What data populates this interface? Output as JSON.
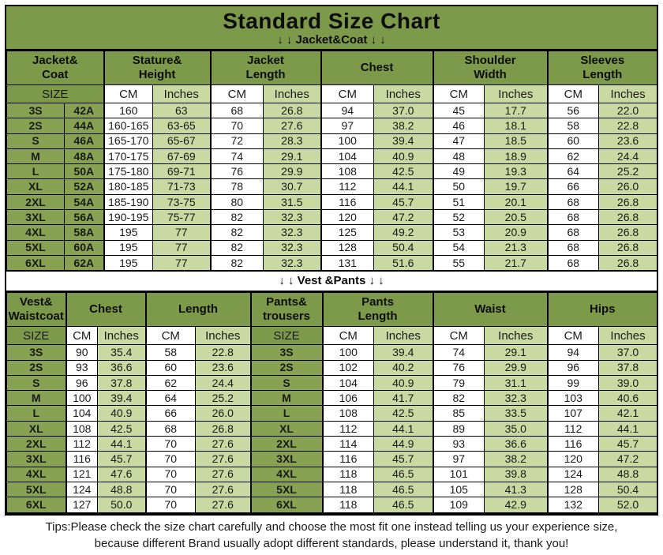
{
  "title": "Standard Size Chart",
  "jacket_section_label": "↓ ↓  Jacket&Coat ↓ ↓",
  "vest_section_label": "↓ ↓  Vest &Pants ↓ ↓",
  "colors": {
    "header_green": "#7d9a4a",
    "size_cell_green": "#86a252",
    "light_green": "#c8d9a1",
    "border": "#000000"
  },
  "jacket_table": {
    "groups": [
      "Jacket&\nCoat",
      "Stature&\nHeight",
      "Jacket\nLength",
      "Chest",
      "Shoulder\nWidth",
      "Sleeves\nLength"
    ],
    "units": [
      "SIZE",
      "CM",
      "Inches",
      "CM",
      "Inches",
      "CM",
      "Inches",
      "CM",
      "Inches",
      "CM",
      "Inches"
    ],
    "rows": [
      [
        "3S",
        "42A",
        "160",
        "63",
        "68",
        "26.8",
        "94",
        "37.0",
        "45",
        "17.7",
        "56",
        "22.0"
      ],
      [
        "2S",
        "44A",
        "160-165",
        "63-65",
        "70",
        "27.6",
        "97",
        "38.2",
        "46",
        "18.1",
        "58",
        "22.8"
      ],
      [
        "S",
        "46A",
        "165-170",
        "65-67",
        "72",
        "28.3",
        "100",
        "39.4",
        "47",
        "18.5",
        "60",
        "23.6"
      ],
      [
        "M",
        "48A",
        "170-175",
        "67-69",
        "74",
        "29.1",
        "104",
        "40.9",
        "48",
        "18.9",
        "62",
        "24.4"
      ],
      [
        "L",
        "50A",
        "175-180",
        "69-71",
        "76",
        "29.9",
        "108",
        "42.5",
        "49",
        "19.3",
        "64",
        "25.2"
      ],
      [
        "XL",
        "52A",
        "180-185",
        "71-73",
        "78",
        "30.7",
        "112",
        "44.1",
        "50",
        "19.7",
        "66",
        "26.0"
      ],
      [
        "2XL",
        "54A",
        "185-190",
        "73-75",
        "80",
        "31.5",
        "116",
        "45.7",
        "51",
        "20.1",
        "68",
        "26.8"
      ],
      [
        "3XL",
        "56A",
        "190-195",
        "75-77",
        "82",
        "32.3",
        "120",
        "47.2",
        "52",
        "20.5",
        "68",
        "26.8"
      ],
      [
        "4XL",
        "58A",
        "195",
        "77",
        "82",
        "32.3",
        "125",
        "49.2",
        "53",
        "20.9",
        "68",
        "26.8"
      ],
      [
        "5XL",
        "60A",
        "195",
        "77",
        "82",
        "32.3",
        "128",
        "50.4",
        "54",
        "21.3",
        "68",
        "26.8"
      ],
      [
        "6XL",
        "62A",
        "195",
        "77",
        "82",
        "32.3",
        "131",
        "51.6",
        "55",
        "21.7",
        "68",
        "26.8"
      ]
    ]
  },
  "vest_table": {
    "groups": [
      "Vest&\nWaistcoat",
      "Chest",
      "Length",
      "Pants&\ntrousers",
      "Pants\nLength",
      "Waist",
      "Hips"
    ],
    "units": [
      "SIZE",
      "CM",
      "Inches",
      "CM",
      "Inches",
      "SIZE",
      "CM",
      "Inches",
      "CM",
      "Inches",
      "CM",
      "Inches"
    ],
    "rows": [
      [
        "3S",
        "90",
        "35.4",
        "58",
        "22.8",
        "3S",
        "100",
        "39.4",
        "74",
        "29.1",
        "94",
        "37.0"
      ],
      [
        "2S",
        "93",
        "36.6",
        "60",
        "23.6",
        "2S",
        "102",
        "40.2",
        "76",
        "29.9",
        "96",
        "37.8"
      ],
      [
        "S",
        "96",
        "37.8",
        "62",
        "24.4",
        "S",
        "104",
        "40.9",
        "79",
        "31.1",
        "99",
        "39.0"
      ],
      [
        "M",
        "100",
        "39.4",
        "64",
        "25.2",
        "M",
        "106",
        "41.7",
        "82",
        "32.3",
        "103",
        "40.6"
      ],
      [
        "L",
        "104",
        "40.9",
        "66",
        "26.0",
        "L",
        "108",
        "42.5",
        "85",
        "33.5",
        "107",
        "42.1"
      ],
      [
        "XL",
        "108",
        "42.5",
        "68",
        "26.8",
        "XL",
        "112",
        "44.1",
        "89",
        "35.0",
        "112",
        "44.1"
      ],
      [
        "2XL",
        "112",
        "44.1",
        "70",
        "27.6",
        "2XL",
        "114",
        "44.9",
        "93",
        "36.6",
        "116",
        "45.7"
      ],
      [
        "3XL",
        "116",
        "45.7",
        "70",
        "27.6",
        "3XL",
        "116",
        "45.7",
        "97",
        "38.2",
        "120",
        "47.2"
      ],
      [
        "4XL",
        "121",
        "47.6",
        "70",
        "27.6",
        "4XL",
        "118",
        "46.5",
        "101",
        "39.8",
        "124",
        "48.8"
      ],
      [
        "5XL",
        "124",
        "48.8",
        "70",
        "27.6",
        "5XL",
        "118",
        "46.5",
        "105",
        "41.3",
        "128",
        "50.4"
      ],
      [
        "6XL",
        "127",
        "50.0",
        "70",
        "27.6",
        "6XL",
        "118",
        "46.5",
        "109",
        "42.9",
        "132",
        "52.0"
      ]
    ]
  },
  "footer": {
    "line1": "Tips:Please check the size chart carefully and choose the most fit one instead telling us your experience size,",
    "line2": "because different Brand usually adopt different standards, please understand it, thank you!"
  }
}
